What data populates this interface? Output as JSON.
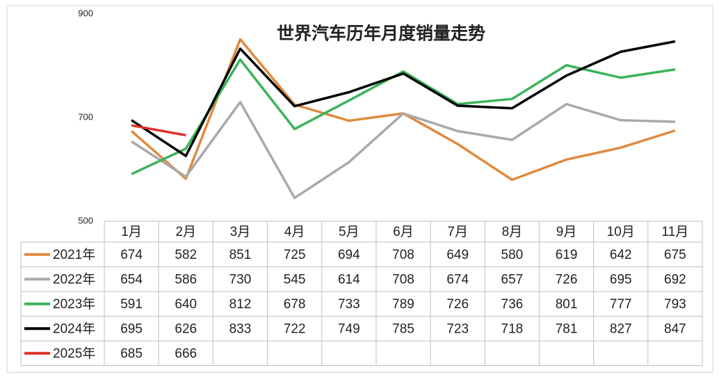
{
  "chart_data": {
    "type": "line",
    "title": "世界汽车历年月度销量走势",
    "categories": [
      "1月",
      "2月",
      "3月",
      "4月",
      "5月",
      "6月",
      "7月",
      "8月",
      "9月",
      "10月",
      "11月"
    ],
    "series": [
      {
        "name": "2021年",
        "color": "#e0893d",
        "values": [
          674,
          582,
          851,
          725,
          694,
          708,
          649,
          580,
          619,
          642,
          675
        ]
      },
      {
        "name": "2022年",
        "color": "#a9a9a9",
        "values": [
          654,
          586,
          730,
          545,
          614,
          708,
          674,
          657,
          726,
          695,
          692
        ]
      },
      {
        "name": "2023年",
        "color": "#3bb35a",
        "values": [
          591,
          640,
          812,
          678,
          733,
          789,
          726,
          736,
          801,
          777,
          793
        ]
      },
      {
        "name": "2024年",
        "color": "#000000",
        "values": [
          695,
          626,
          833,
          722,
          749,
          785,
          723,
          718,
          781,
          827,
          847
        ]
      },
      {
        "name": "2025年",
        "color": "#e0302a",
        "values": [
          685,
          666,
          null,
          null,
          null,
          null,
          null,
          null,
          null,
          null,
          null
        ]
      }
    ],
    "ylim": [
      500,
      900
    ],
    "yticks": [
      500,
      700,
      900
    ],
    "grid": false
  }
}
